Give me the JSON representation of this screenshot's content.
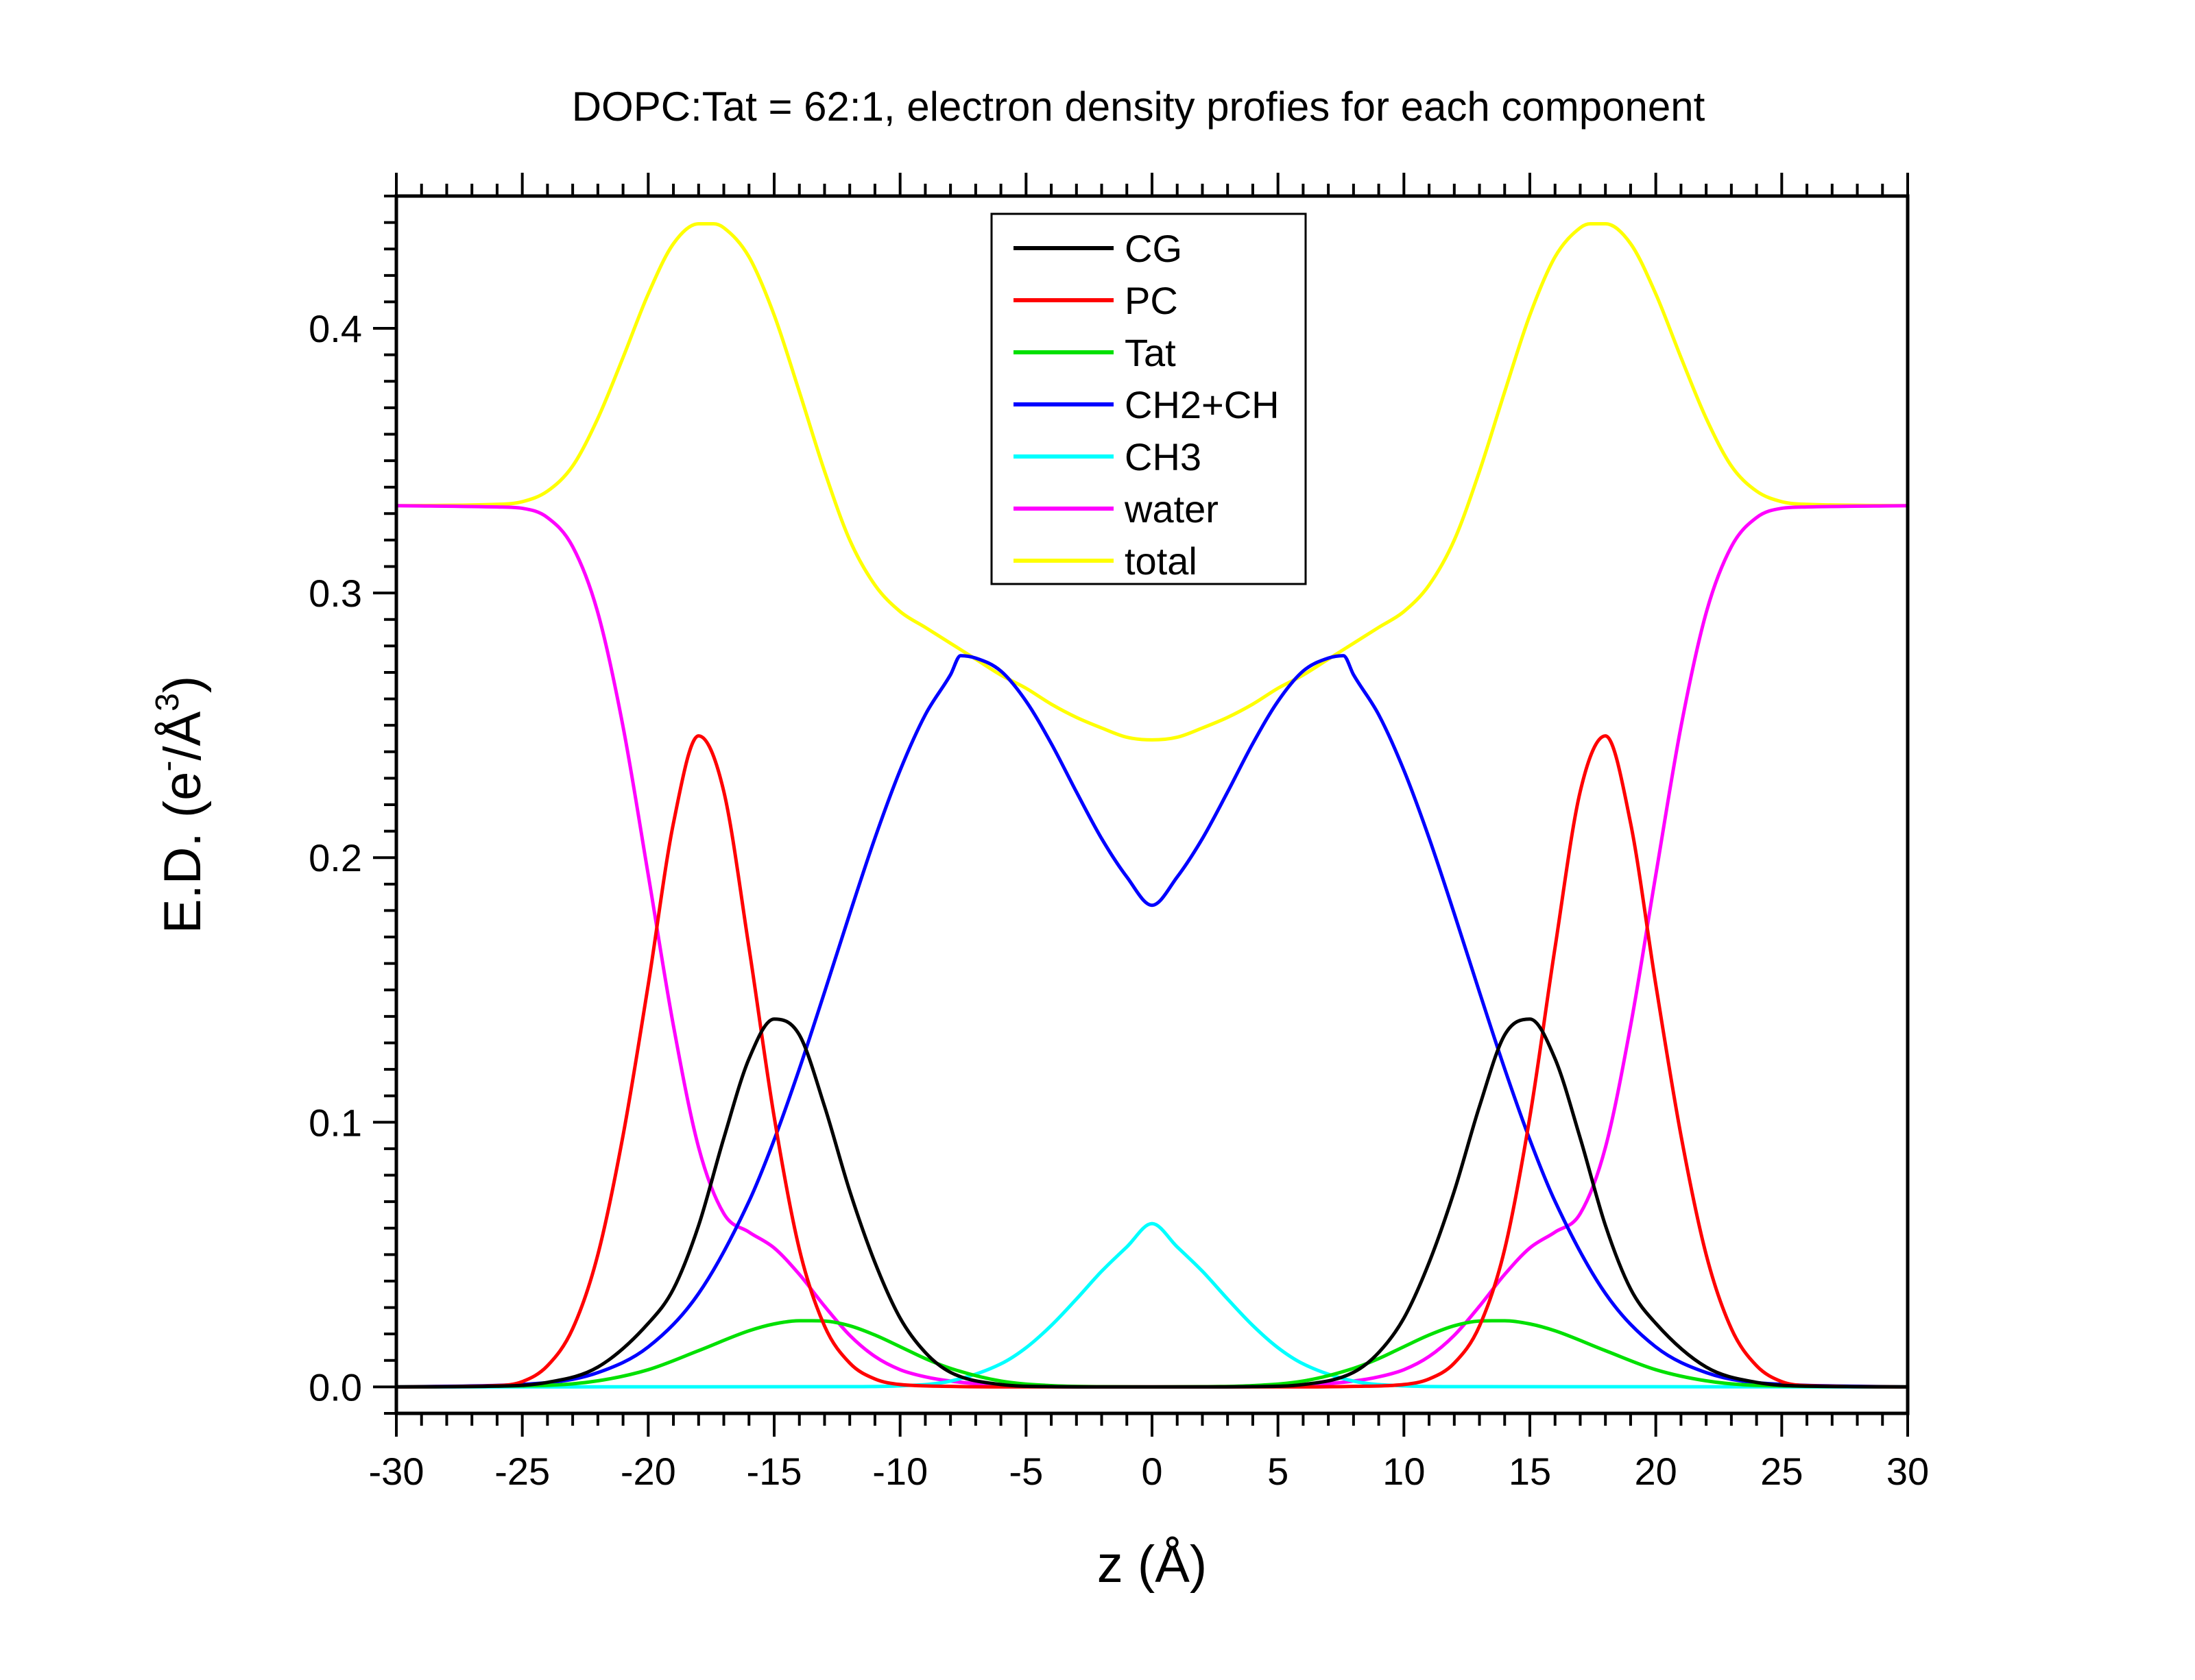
{
  "chart_data": {
    "type": "line",
    "title": "DOPC:Tat = 62:1, electron density profies for each component",
    "xlabel": "z (Å)",
    "ylabel": {
      "prefix": "E.D. (e",
      "sup1": "-",
      "mid": "/Å",
      "sup2": "3",
      "suffix": ")"
    },
    "xlim": [
      -30,
      30
    ],
    "ylim": [
      -0.01,
      0.45
    ],
    "xticks": [
      -30,
      -25,
      -20,
      -15,
      -10,
      -5,
      0,
      5,
      10,
      15,
      20,
      25,
      30
    ],
    "xtick_labels": [
      "-30",
      "-25",
      "-20",
      "-15",
      "-10",
      "-5",
      "0",
      "5",
      "10",
      "15",
      "20",
      "25",
      "30"
    ],
    "yticks": [
      0.0,
      0.1,
      0.2,
      0.3,
      0.4
    ],
    "ytick_labels": [
      "0.0",
      "0.1",
      "0.2",
      "0.3",
      "0.4"
    ],
    "grid": false,
    "legend_position": "top-center",
    "series": [
      {
        "name": "CG",
        "color": "#000000",
        "x": [
          -30,
          -26,
          -24,
          -22,
          -20,
          -19,
          -18,
          -17,
          -16,
          -15,
          -14,
          -13,
          -12,
          -11,
          -10,
          -9,
          -8,
          -6,
          -4,
          -2,
          0,
          2,
          4,
          6,
          8,
          9,
          10,
          11,
          12,
          13,
          14,
          15,
          16,
          17,
          18,
          19,
          20,
          22,
          24,
          26,
          30
        ],
        "y": [
          0,
          0.0003,
          0.0017,
          0.0075,
          0.024,
          0.037,
          0.061,
          0.094,
          0.124,
          0.139,
          0.133,
          0.106,
          0.074,
          0.047,
          0.026,
          0.013,
          0.0055,
          0.0009,
          0.0001,
          0,
          0,
          0,
          0.0001,
          0.0009,
          0.0055,
          0.013,
          0.026,
          0.047,
          0.074,
          0.106,
          0.133,
          0.139,
          0.124,
          0.094,
          0.061,
          0.037,
          0.024,
          0.0075,
          0.0017,
          0.0003,
          0
        ]
      },
      {
        "name": "PC",
        "color": "#ff0000",
        "x": [
          -30,
          -26,
          -25,
          -24,
          -23,
          -22,
          -21,
          -20,
          -19,
          -18,
          -17,
          -16,
          -15,
          -14,
          -13,
          -12,
          -11,
          -10,
          -8,
          -6,
          0,
          6,
          8,
          10,
          11,
          12,
          13,
          14,
          15,
          16,
          17,
          18,
          19,
          20,
          21,
          22,
          23,
          24,
          25,
          26,
          30
        ],
        "y": [
          0,
          0.0005,
          0.002,
          0.008,
          0.022,
          0.05,
          0.095,
          0.152,
          0.213,
          0.246,
          0.225,
          0.166,
          0.102,
          0.052,
          0.023,
          0.009,
          0.003,
          0.0009,
          0.0002,
          0,
          0,
          0,
          0.0002,
          0.0009,
          0.003,
          0.009,
          0.023,
          0.052,
          0.102,
          0.166,
          0.225,
          0.246,
          0.213,
          0.152,
          0.095,
          0.05,
          0.022,
          0.008,
          0.002,
          0.0005,
          0
        ]
      },
      {
        "name": "Tat",
        "color": "#00e000",
        "x": [
          -30,
          -24,
          -22,
          -20,
          -18,
          -16,
          -15,
          -14,
          -13.5,
          -13,
          -12,
          -11,
          -10,
          -9,
          -8,
          -6,
          -4,
          -2,
          0,
          2,
          4,
          6,
          8,
          9,
          10,
          11,
          12,
          13,
          13.5,
          14,
          15,
          16,
          18,
          20,
          22,
          24,
          30
        ],
        "y": [
          0,
          0.0006,
          0.0023,
          0.0065,
          0.0137,
          0.0212,
          0.0238,
          0.025,
          0.025,
          0.0249,
          0.0231,
          0.0196,
          0.0152,
          0.0107,
          0.007,
          0.0022,
          0.0005,
          0.0001,
          0,
          0.0001,
          0.0005,
          0.0022,
          0.007,
          0.0107,
          0.0152,
          0.0196,
          0.0231,
          0.0249,
          0.025,
          0.025,
          0.0238,
          0.0212,
          0.0137,
          0.0065,
          0.0023,
          0.0006,
          0
        ]
      },
      {
        "name": "CH2+CH",
        "color": "#0000ff",
        "x": [
          -30,
          -24,
          -22,
          -20,
          -18,
          -16,
          -15,
          -14,
          -13,
          -12,
          -11,
          -10,
          -9,
          -8,
          -7.6,
          -7,
          -6,
          -5,
          -4,
          -3,
          -2,
          -1,
          0,
          1,
          2,
          3,
          4,
          5,
          6,
          7,
          7.6,
          8,
          9,
          10,
          11,
          12,
          13,
          14,
          15,
          16,
          18,
          20,
          22,
          24,
          30
        ],
        "y": [
          0,
          0.0016,
          0.0054,
          0.0151,
          0.0353,
          0.0701,
          0.0934,
          0.1202,
          0.1492,
          0.1788,
          0.2074,
          0.233,
          0.254,
          0.2691,
          0.2763,
          0.2754,
          0.2705,
          0.2591,
          0.2431,
          0.2248,
          0.2072,
          0.1927,
          0.182,
          0.1927,
          0.2072,
          0.2248,
          0.2431,
          0.2591,
          0.2705,
          0.2754,
          0.2763,
          0.2691,
          0.254,
          0.233,
          0.2074,
          0.1788,
          0.1492,
          0.1202,
          0.0934,
          0.0701,
          0.0353,
          0.0151,
          0.0054,
          0.0016,
          0
        ]
      },
      {
        "name": "CH3",
        "color": "#00ffff",
        "x": [
          -30,
          -12,
          -10,
          -8,
          -6,
          -5,
          -4,
          -3,
          -2,
          -1,
          0,
          1,
          2,
          3,
          4,
          5,
          6,
          8,
          10,
          12,
          30
        ],
        "y": [
          0,
          0.0001,
          0.0004,
          0.0022,
          0.0087,
          0.0148,
          0.0232,
          0.0332,
          0.0437,
          0.0529,
          0.0617,
          0.0529,
          0.0437,
          0.0332,
          0.0232,
          0.0148,
          0.0087,
          0.0022,
          0.0004,
          0.0001,
          0
        ]
      },
      {
        "name": "water",
        "color": "#ff00ff",
        "x": [
          -30,
          -26,
          -25,
          -24,
          -23,
          -22,
          -21,
          -20,
          -19,
          -18,
          -17,
          -16,
          -15,
          -14,
          -13,
          -12,
          -11,
          -10,
          -9,
          -8,
          -6,
          -4,
          -2,
          0,
          2,
          4,
          6,
          8,
          9,
          10,
          11,
          12,
          13,
          14,
          15,
          16,
          17,
          18,
          19,
          20,
          21,
          22,
          23,
          24,
          25,
          26,
          30
        ],
        "y": [
          0.333,
          0.3325,
          0.332,
          0.3285,
          0.3175,
          0.2925,
          0.2495,
          0.1935,
          0.1365,
          0.0905,
          0.0655,
          0.0585,
          0.0525,
          0.0425,
          0.0305,
          0.0195,
          0.0115,
          0.0065,
          0.0038,
          0.0022,
          0.0006,
          0.0001,
          0,
          0,
          0,
          0.0001,
          0.0006,
          0.0022,
          0.0038,
          0.0065,
          0.0115,
          0.0195,
          0.0305,
          0.0425,
          0.0525,
          0.0585,
          0.0655,
          0.0905,
          0.1365,
          0.1935,
          0.2495,
          0.2925,
          0.3175,
          0.3285,
          0.332,
          0.3325,
          0.333
        ]
      },
      {
        "name": "total",
        "color": "#ffff00",
        "x": [
          -30,
          -26,
          -25,
          -24,
          -23,
          -22,
          -21,
          -20,
          -19,
          -18,
          -17.4,
          -17,
          -16,
          -15,
          -14,
          -13,
          -12,
          -11,
          -10,
          -9,
          -8,
          -7,
          -6,
          -5,
          -4,
          -3,
          -2,
          -1,
          0,
          1,
          2,
          3,
          4,
          5,
          6,
          7,
          8,
          9,
          10,
          11,
          12,
          13,
          14,
          15,
          16,
          17,
          17.4,
          18,
          19,
          20,
          21,
          22,
          23,
          24,
          25,
          26,
          30
        ],
        "y": [
          0.333,
          0.3335,
          0.3345,
          0.3385,
          0.348,
          0.366,
          0.389,
          0.413,
          0.432,
          0.4395,
          0.4395,
          0.438,
          0.427,
          0.405,
          0.376,
          0.346,
          0.32,
          0.303,
          0.293,
          0.287,
          0.281,
          0.275,
          0.269,
          0.264,
          0.258,
          0.253,
          0.249,
          0.2455,
          0.2445,
          0.2455,
          0.249,
          0.253,
          0.258,
          0.264,
          0.269,
          0.275,
          0.281,
          0.287,
          0.293,
          0.303,
          0.32,
          0.346,
          0.376,
          0.405,
          0.427,
          0.438,
          0.4395,
          0.4395,
          0.432,
          0.413,
          0.389,
          0.366,
          0.348,
          0.3385,
          0.3345,
          0.3335,
          0.333
        ]
      }
    ]
  }
}
